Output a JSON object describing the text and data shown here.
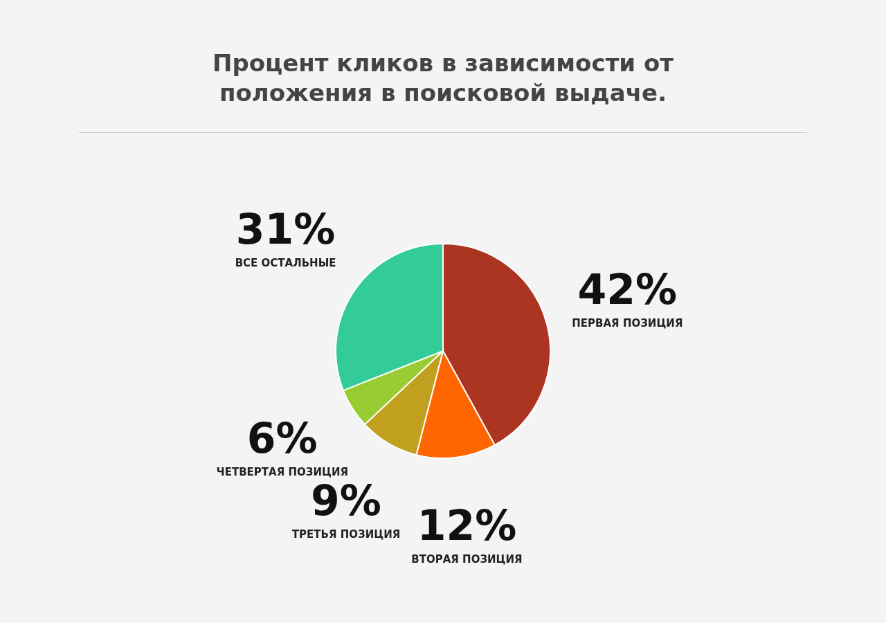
{
  "chart_data": {
    "type": "pie",
    "title": "Процент кликов в зависимости от положения в поисковой выдаче.",
    "categories": [
      "ПЕРВАЯ ПОЗИЦИЯ",
      "ВТОРАЯ ПОЗИЦИЯ",
      "ТРЕТЬЯ ПОЗИЦИЯ",
      "ЧЕТВЕРТАЯ ПОЗИЦИЯ",
      "ВСЕ ОСТАЛЬНЫЕ"
    ],
    "values": [
      42,
      12,
      9,
      6,
      31
    ],
    "value_labels": [
      "42%",
      "12%",
      "9%",
      "6%",
      "31%"
    ],
    "colors": [
      "#ab3520",
      "#ff6600",
      "#c1a020",
      "#99cc33",
      "#33cc99"
    ]
  }
}
